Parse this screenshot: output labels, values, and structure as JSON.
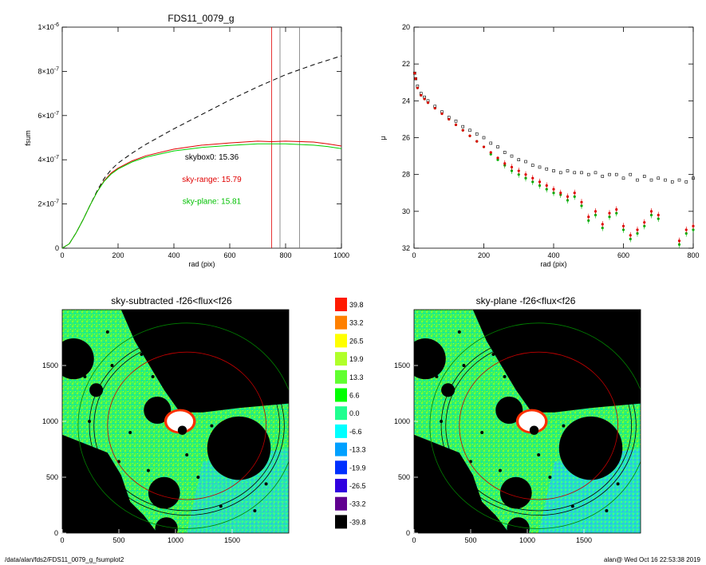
{
  "chart_data": [
    {
      "type": "line",
      "title": "FDS11_0079_g",
      "xlabel": "rad (pix)",
      "ylabel": "fsum",
      "xlim": [
        0,
        1000
      ],
      "ylim": [
        0,
        1e-06
      ],
      "xticks": [
        "0",
        "200",
        "400",
        "600",
        "800",
        "1000"
      ],
      "yticks": [
        {
          "v": 0,
          "m": "0",
          "e": ""
        },
        {
          "v": 2e-07,
          "m": "2×10",
          "e": "-7"
        },
        {
          "v": 4e-07,
          "m": "4×10",
          "e": "-7"
        },
        {
          "v": 6e-07,
          "m": "6×10",
          "e": "-7"
        },
        {
          "v": 8e-07,
          "m": "8×10",
          "e": "-7"
        },
        {
          "v": 1e-06,
          "m": "1×10",
          "e": "-6"
        }
      ],
      "series": [
        {
          "color": "#000000",
          "dash": true,
          "x": [
            0,
            25,
            50,
            75,
            100,
            125,
            150,
            175,
            200,
            250,
            300,
            400,
            500,
            600,
            700,
            800,
            900,
            1000
          ],
          "y": [
            0,
            2e-08,
            7e-08,
            1.3e-07,
            1.95e-07,
            2.6e-07,
            3.15e-07,
            3.55e-07,
            3.85e-07,
            4.3e-07,
            4.7e-07,
            5.4e-07,
            6.05e-07,
            6.7e-07,
            7.3e-07,
            7.85e-07,
            8.3e-07,
            8.7e-07
          ]
        },
        {
          "color": "#e00000",
          "dash": false,
          "x": [
            0,
            25,
            50,
            75,
            100,
            125,
            150,
            175,
            200,
            250,
            300,
            400,
            500,
            600,
            700,
            750,
            800,
            900,
            950,
            1000
          ],
          "y": [
            0,
            2e-08,
            7e-08,
            1.3e-07,
            1.95e-07,
            2.55e-07,
            3.05e-07,
            3.4e-07,
            3.62e-07,
            3.95e-07,
            4.18e-07,
            4.48e-07,
            4.66e-07,
            4.76e-07,
            4.84e-07,
            4.82e-07,
            4.84e-07,
            4.8e-07,
            4.72e-07,
            4.62e-07
          ]
        },
        {
          "color": "#00d000",
          "dash": false,
          "x": [
            0,
            25,
            50,
            75,
            100,
            125,
            150,
            175,
            200,
            250,
            300,
            400,
            500,
            600,
            700,
            750,
            800,
            900,
            950,
            1000
          ],
          "y": [
            0,
            2e-08,
            7e-08,
            1.3e-07,
            1.95e-07,
            2.55e-07,
            3.02e-07,
            3.35e-07,
            3.58e-07,
            3.9e-07,
            4.12e-07,
            4.4e-07,
            4.56e-07,
            4.65e-07,
            4.72e-07,
            4.72e-07,
            4.72e-07,
            4.66e-07,
            4.6e-07,
            4.5e-07
          ]
        }
      ],
      "vlines": [
        {
          "x": 750,
          "color": "#e00000"
        },
        {
          "x": 780,
          "color": "#777777"
        },
        {
          "x": 850,
          "color": "#777777"
        }
      ],
      "annotations": [
        {
          "text": "skybox0: 15.36",
          "color": "#000000",
          "x": 450,
          "y": 4e-07
        },
        {
          "text": "sky-range: 15.79",
          "color": "#e00000",
          "x": 450,
          "y": 3e-07
        },
        {
          "text": "sky-plane: 15.81",
          "color": "#00c000",
          "x": 450,
          "y": 2e-07
        }
      ]
    },
    {
      "type": "scatter",
      "title": "",
      "xlabel": "rad (pix)",
      "ylabel": "μ",
      "xlim": [
        0,
        800
      ],
      "ylim": [
        32,
        20
      ],
      "xticks": [
        "0",
        "200",
        "400",
        "600",
        "800"
      ],
      "yticks": [
        "20",
        "22",
        "24",
        "26",
        "28",
        "30",
        "32"
      ],
      "series": [
        {
          "color": "#000000",
          "marker": "square",
          "x": [
            2,
            5,
            10,
            20,
            30,
            40,
            60,
            80,
            100,
            120,
            140,
            160,
            180,
            200,
            220,
            240,
            260,
            280,
            300,
            320,
            340,
            360,
            380,
            400,
            420,
            440,
            460,
            480,
            500,
            520,
            540,
            560,
            580,
            600,
            620,
            640,
            660,
            680,
            700,
            720,
            740,
            760,
            780,
            800
          ],
          "y": [
            22.5,
            22.8,
            23.2,
            23.6,
            23.8,
            24.0,
            24.3,
            24.6,
            24.9,
            25.1,
            25.4,
            25.6,
            25.8,
            26.0,
            26.3,
            26.5,
            26.8,
            27.0,
            27.2,
            27.3,
            27.5,
            27.6,
            27.7,
            27.8,
            27.9,
            27.8,
            27.9,
            27.9,
            28.0,
            27.9,
            28.1,
            28.0,
            28.0,
            28.2,
            28.0,
            28.3,
            28.1,
            28.3,
            28.2,
            28.3,
            28.4,
            28.3,
            28.4,
            28.2
          ]
        },
        {
          "color": "#00b000",
          "marker": "dot",
          "x": [
            2,
            5,
            10,
            20,
            30,
            40,
            60,
            80,
            100,
            120,
            140,
            160,
            180,
            200,
            220,
            240,
            260,
            280,
            300,
            320,
            340,
            360,
            380,
            400,
            420,
            440,
            460,
            480,
            500,
            520,
            540,
            560,
            580,
            600,
            620,
            640,
            660,
            680,
            700,
            760,
            780,
            800
          ],
          "y": [
            22.5,
            22.8,
            23.3,
            23.7,
            23.9,
            24.1,
            24.4,
            24.7,
            25.0,
            25.3,
            25.6,
            25.9,
            26.2,
            26.5,
            26.9,
            27.2,
            27.5,
            27.8,
            28.0,
            28.2,
            28.4,
            28.6,
            28.8,
            29.0,
            29.1,
            29.4,
            29.2,
            29.7,
            30.5,
            30.2,
            30.9,
            30.3,
            30.1,
            31.0,
            31.5,
            31.2,
            30.8,
            30.2,
            30.4,
            31.8,
            31.2,
            31.0
          ]
        },
        {
          "color": "#e00000",
          "marker": "dot",
          "x": [
            2,
            5,
            10,
            20,
            30,
            40,
            60,
            80,
            100,
            120,
            140,
            160,
            180,
            200,
            220,
            240,
            260,
            280,
            300,
            320,
            340,
            360,
            380,
            400,
            420,
            440,
            460,
            480,
            500,
            520,
            540,
            560,
            580,
            600,
            620,
            640,
            660,
            680,
            700,
            760,
            780,
            800
          ],
          "y": [
            22.5,
            22.8,
            23.3,
            23.7,
            23.9,
            24.1,
            24.4,
            24.7,
            25.0,
            25.3,
            25.6,
            25.9,
            26.2,
            26.5,
            26.8,
            27.1,
            27.4,
            27.6,
            27.8,
            28.0,
            28.2,
            28.4,
            28.6,
            28.8,
            29.0,
            29.2,
            29.0,
            29.5,
            30.3,
            30.0,
            30.7,
            30.1,
            29.9,
            30.8,
            31.3,
            31.0,
            30.6,
            30.0,
            30.2,
            31.6,
            31.0,
            30.8
          ]
        }
      ]
    },
    {
      "type": "heatmap",
      "title": "sky-subtracted -f26<flux<f26",
      "xlim": [
        0,
        2000
      ],
      "ylim": [
        0,
        2000
      ],
      "xticks": [
        "0",
        "500",
        "1000",
        "1500"
      ],
      "yticks": [
        "0",
        "500",
        "1000",
        "1500"
      ]
    },
    {
      "type": "heatmap",
      "title": "sky-plane -f26<flux<f26",
      "xlim": [
        0,
        2000
      ],
      "ylim": [
        0,
        2000
      ],
      "xticks": [
        "0",
        "500",
        "1000",
        "1500"
      ],
      "yticks": [
        "0",
        "500",
        "1000",
        "1500"
      ]
    }
  ],
  "colorbar": {
    "labels": [
      "39.8",
      "33.2",
      "26.5",
      "19.9",
      "13.3",
      "6.6",
      "0.0",
      "-6.6",
      "-13.3",
      "-19.9",
      "-26.5",
      "-33.2",
      "-39.8"
    ],
    "colors": [
      "#ff1a00",
      "#ff8000",
      "#ffff00",
      "#b0ff2a",
      "#60ff30",
      "#00ff00",
      "#20ff90",
      "#00ffff",
      "#00a0ff",
      "#0030ff",
      "#3000e0",
      "#600090",
      "#000000"
    ]
  },
  "footer": {
    "left": "/data/alan/fds2/FDS11_0079_g_fsumplot2",
    "right": "alan@  Wed Oct 16 22:53:38 2019"
  }
}
